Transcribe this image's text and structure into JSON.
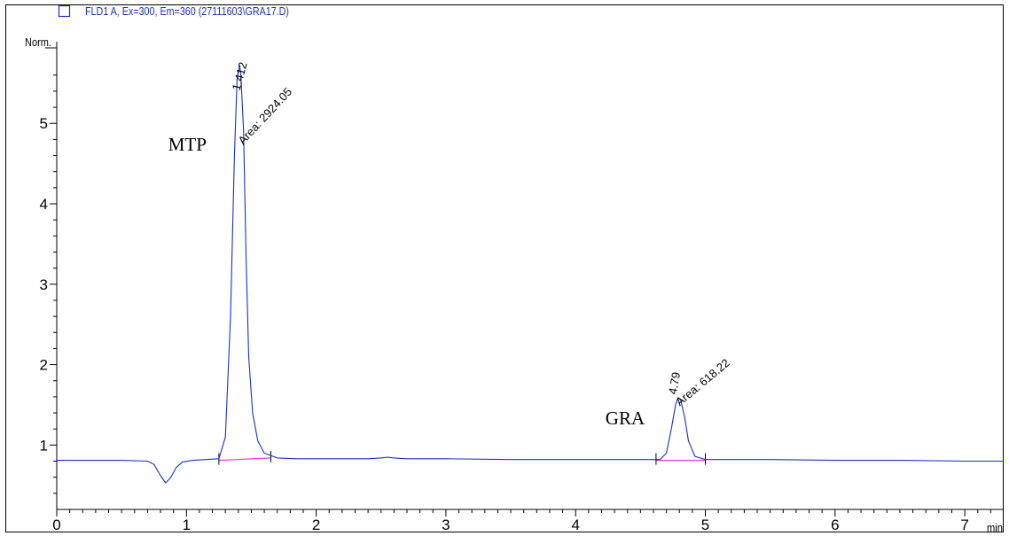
{
  "chart_data": {
    "type": "line",
    "legend": {
      "label": "FLD1 A, Ex=300, Em=360 (27111603\\GRA17.D)",
      "placement": "top-left",
      "swatch_color": "#1a2fd0"
    },
    "ylabel": "Norm.",
    "xlabel": "min",
    "xlim": [
      0,
      7.3
    ],
    "ylim": [
      0.2,
      5.95
    ],
    "x_ticks": [
      0,
      1,
      2,
      3,
      4,
      5,
      6,
      7
    ],
    "y_ticks": [
      1,
      2,
      3,
      4,
      5
    ],
    "grid": false,
    "series": [
      {
        "color": "#1a2fd0",
        "x": [
          0,
          0.5,
          0.7,
          0.75,
          0.8,
          0.84,
          0.88,
          0.92,
          0.97,
          1.05,
          1.15,
          1.25,
          1.3,
          1.34,
          1.37,
          1.39,
          1.41,
          1.42,
          1.44,
          1.46,
          1.48,
          1.51,
          1.55,
          1.6,
          1.7,
          1.85,
          2.0,
          2.4,
          2.5,
          2.55,
          2.6,
          2.7,
          3.0,
          3.5,
          4.0,
          4.5,
          4.65,
          4.7,
          4.74,
          4.77,
          4.79,
          4.81,
          4.84,
          4.87,
          4.92,
          5.0,
          5.5,
          6.0,
          6.5,
          7.0,
          7.3
        ],
        "y": [
          0.81,
          0.81,
          0.8,
          0.76,
          0.62,
          0.53,
          0.6,
          0.72,
          0.79,
          0.81,
          0.82,
          0.83,
          1.1,
          2.6,
          4.6,
          5.55,
          5.72,
          5.6,
          4.9,
          3.3,
          2.1,
          1.4,
          1.05,
          0.9,
          0.84,
          0.83,
          0.83,
          0.83,
          0.84,
          0.85,
          0.84,
          0.83,
          0.83,
          0.82,
          0.82,
          0.82,
          0.82,
          0.9,
          1.22,
          1.5,
          1.59,
          1.56,
          1.35,
          1.05,
          0.86,
          0.82,
          0.82,
          0.81,
          0.81,
          0.8,
          0.8
        ]
      }
    ],
    "baselines": [
      {
        "color": "#e040e0",
        "x": [
          1.25,
          1.65
        ],
        "y": [
          0.81,
          0.84
        ]
      },
      {
        "color": "#e040e0",
        "x": [
          4.62,
          5.0
        ],
        "y": [
          0.81,
          0.81
        ]
      }
    ],
    "annotations": [
      {
        "text": "MTP",
        "x": 1.42,
        "y": 5.72,
        "kind": "compound"
      },
      {
        "text": "1.412",
        "x": 1.41,
        "y": 5.72,
        "kind": "retention_time"
      },
      {
        "text": "Area: 2924.05",
        "x": 1.41,
        "y": 5.72,
        "kind": "area"
      },
      {
        "text": "GRA",
        "x": 4.79,
        "y": 1.59,
        "kind": "compound"
      },
      {
        "text": "4.79",
        "x": 4.79,
        "y": 1.59,
        "kind": "retention_time"
      },
      {
        "text": "Area: 618.22",
        "x": 4.79,
        "y": 1.59,
        "kind": "area"
      }
    ]
  }
}
